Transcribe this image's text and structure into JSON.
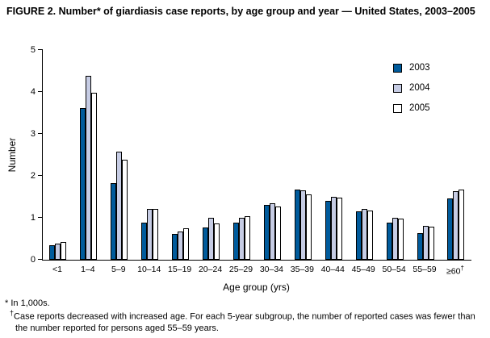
{
  "figure": {
    "title": "FIGURE 2. Number* of giardiasis case reports, by age group and year — United States, 2003–2005"
  },
  "chart_data": {
    "type": "bar",
    "title": "FIGURE 2. Number* of giardiasis case reports, by age group and year — United States, 2003–2005",
    "xlabel": "Age group (yrs)",
    "ylabel": "Number",
    "ylim": [
      0,
      5
    ],
    "yticks": [
      0,
      1,
      2,
      3,
      4,
      5
    ],
    "grid": false,
    "legend_position": "top-right",
    "units_note": "In 1,000s",
    "categories": [
      "<1",
      "1–4",
      "5–9",
      "10–14",
      "15–19",
      "20–24",
      "25–29",
      "30–34",
      "35–39",
      "40–44",
      "45–49",
      "50–54",
      "55–59",
      "≥60†"
    ],
    "series": [
      {
        "name": "2003",
        "color": "#005b9c",
        "values": [
          0.35,
          3.62,
          1.83,
          0.88,
          0.62,
          0.76,
          0.88,
          1.3,
          1.68,
          1.4,
          1.16,
          0.88,
          0.63,
          1.47
        ]
      },
      {
        "name": "2004",
        "color": "#c6cce4",
        "values": [
          0.38,
          4.38,
          2.58,
          1.22,
          0.67,
          1.0,
          1.0,
          1.35,
          1.66,
          1.5,
          1.21,
          1.0,
          0.8,
          1.63
        ]
      },
      {
        "name": "2005",
        "color": "#ffffff",
        "values": [
          0.42,
          3.98,
          2.38,
          1.22,
          0.75,
          0.87,
          1.03,
          1.27,
          1.56,
          1.48,
          1.18,
          0.98,
          0.78,
          1.68
        ]
      }
    ]
  },
  "footnotes": {
    "note1": {
      "symbol": "*",
      "text": "In 1,000s."
    },
    "note2": {
      "symbol": "†",
      "text": "Case reports decreased with increased age. For each 5-year subgroup, the number of reported cases was fewer than the number reported for persons aged 55–59 years."
    }
  }
}
